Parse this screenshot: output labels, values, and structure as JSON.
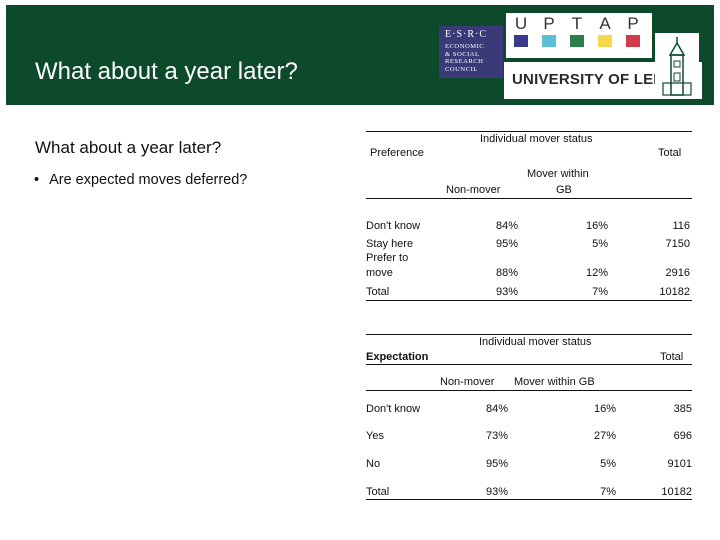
{
  "header": {
    "title": "What about a year later?",
    "esrc_logo_initials": "E·S·R·C",
    "esrc_logo_lines": [
      "ECONOMIC",
      "& SOCIAL",
      "RESEARCH",
      "COUNCIL"
    ],
    "uptap_letters": [
      "U",
      "P",
      "T",
      "A",
      "P"
    ],
    "uptap_colors": [
      "#3b3a8c",
      "#5bbfd6",
      "#2f7d4a",
      "#f3d94a",
      "#d03c4b"
    ],
    "university_name": "UNIVERSITY OF LEEDS"
  },
  "content": {
    "subtitle": "What about a year later?",
    "bullets": [
      "Are expected moves deferred?"
    ]
  },
  "table_preference": {
    "row_header": "Preference",
    "group_header": "Individual mover status",
    "total_header": "Total",
    "col1_header": "Non-mover",
    "col2_header_line1": "Mover within",
    "col2_header_line2": "GB",
    "rows": [
      {
        "label": "Don't know",
        "non_mover": "84%",
        "mover_gb": "16%",
        "total": "116"
      },
      {
        "label": "Stay here",
        "non_mover": "95%",
        "mover_gb": "5%",
        "total": "7150"
      },
      {
        "label_line1": "Prefer to",
        "label_line2": "move",
        "non_mover": "88%",
        "mover_gb": "12%",
        "total": "2916"
      },
      {
        "label": "Total",
        "non_mover": "93%",
        "mover_gb": "7%",
        "total": "10182"
      }
    ]
  },
  "table_expectation": {
    "row_header": "Expectation",
    "group_header": "Individual mover status",
    "total_header": "Total",
    "col1_header": "Non-mover",
    "col2_header": "Mover within GB",
    "rows": [
      {
        "label": "Don't know",
        "non_mover": "84%",
        "mover_gb": "16%",
        "total": "385"
      },
      {
        "label": "Yes",
        "non_mover": "73%",
        "mover_gb": "27%",
        "total": "696"
      },
      {
        "label": "No",
        "non_mover": "95%",
        "mover_gb": "5%",
        "total": "9101"
      },
      {
        "label": "Total",
        "non_mover": "93%",
        "mover_gb": "7%",
        "total": "10182"
      }
    ]
  }
}
